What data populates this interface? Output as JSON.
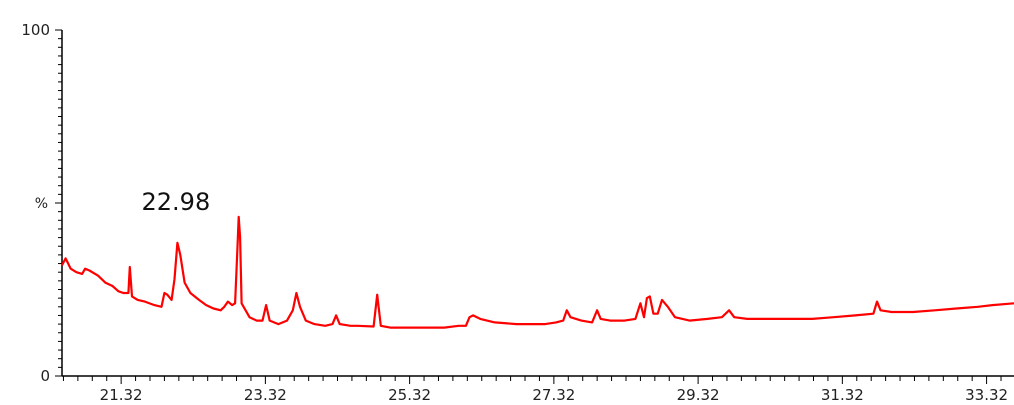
{
  "chart_data": {
    "type": "line",
    "title": "",
    "xlabel": "",
    "ylabel": "%",
    "y_ticks": [
      {
        "value": 0,
        "label": "0"
      },
      {
        "value": 100,
        "label": "100"
      }
    ],
    "ylim": [
      0,
      100
    ],
    "xlim": [
      20.5,
      33.7
    ],
    "x_ticks": [
      "21.32",
      "23.32",
      "25.32",
      "27.32",
      "29.32",
      "31.32",
      "33.32"
    ],
    "grid": false,
    "legend": "none",
    "line_color": "#ff0000",
    "annotations": [
      {
        "text": "22.98",
        "x": 22.98,
        "y": 48
      }
    ],
    "series": [
      {
        "values": [
          [
            20.5,
            32
          ],
          [
            20.55,
            34
          ],
          [
            20.62,
            31
          ],
          [
            20.7,
            30
          ],
          [
            20.78,
            29.5
          ],
          [
            20.82,
            31
          ],
          [
            20.88,
            30.5
          ],
          [
            21.0,
            29
          ],
          [
            21.1,
            27
          ],
          [
            21.2,
            26
          ],
          [
            21.28,
            24.5
          ],
          [
            21.35,
            24
          ],
          [
            21.42,
            24
          ],
          [
            21.44,
            31.5
          ],
          [
            21.47,
            23
          ],
          [
            21.55,
            22
          ],
          [
            21.65,
            21.5
          ],
          [
            21.78,
            20.5
          ],
          [
            21.88,
            20
          ],
          [
            21.92,
            24
          ],
          [
            21.96,
            23.5
          ],
          [
            22.02,
            22
          ],
          [
            22.06,
            28
          ],
          [
            22.1,
            38.5
          ],
          [
            22.14,
            35
          ],
          [
            22.2,
            27
          ],
          [
            22.28,
            24
          ],
          [
            22.4,
            22
          ],
          [
            22.5,
            20.5
          ],
          [
            22.6,
            19.5
          ],
          [
            22.7,
            19
          ],
          [
            22.75,
            20
          ],
          [
            22.8,
            21.5
          ],
          [
            22.86,
            20.5
          ],
          [
            22.9,
            21
          ],
          [
            22.93,
            36
          ],
          [
            22.95,
            46
          ],
          [
            22.97,
            40
          ],
          [
            22.99,
            21
          ],
          [
            23.1,
            17
          ],
          [
            23.2,
            16
          ],
          [
            23.28,
            16
          ],
          [
            23.33,
            20.5
          ],
          [
            23.38,
            16
          ],
          [
            23.5,
            15
          ],
          [
            23.62,
            16
          ],
          [
            23.7,
            19
          ],
          [
            23.75,
            24
          ],
          [
            23.8,
            20
          ],
          [
            23.88,
            16
          ],
          [
            24.0,
            15
          ],
          [
            24.15,
            14.5
          ],
          [
            24.25,
            15
          ],
          [
            24.3,
            17.5
          ],
          [
            24.35,
            15
          ],
          [
            24.5,
            14.5
          ],
          [
            24.6,
            14.5
          ],
          [
            24.82,
            14.3
          ],
          [
            24.87,
            23.5
          ],
          [
            24.92,
            14.5
          ],
          [
            25.05,
            14
          ],
          [
            25.3,
            14
          ],
          [
            25.6,
            14
          ],
          [
            25.8,
            14
          ],
          [
            26.0,
            14.5
          ],
          [
            26.1,
            14.5
          ],
          [
            26.15,
            17
          ],
          [
            26.2,
            17.5
          ],
          [
            26.3,
            16.5
          ],
          [
            26.5,
            15.5
          ],
          [
            26.8,
            15
          ],
          [
            27.0,
            15
          ],
          [
            27.2,
            15
          ],
          [
            27.35,
            15.5
          ],
          [
            27.45,
            16
          ],
          [
            27.5,
            19
          ],
          [
            27.55,
            17
          ],
          [
            27.7,
            16
          ],
          [
            27.85,
            15.5
          ],
          [
            27.92,
            19
          ],
          [
            27.97,
            16.5
          ],
          [
            28.1,
            16
          ],
          [
            28.3,
            16
          ],
          [
            28.45,
            16.5
          ],
          [
            28.52,
            21
          ],
          [
            28.57,
            17
          ],
          [
            28.61,
            22.5
          ],
          [
            28.65,
            23
          ],
          [
            28.7,
            18
          ],
          [
            28.76,
            18
          ],
          [
            28.82,
            22
          ],
          [
            28.9,
            20
          ],
          [
            29.0,
            17
          ],
          [
            29.2,
            16
          ],
          [
            29.45,
            16.5
          ],
          [
            29.65,
            17
          ],
          [
            29.75,
            19
          ],
          [
            29.82,
            17
          ],
          [
            30.0,
            16.5
          ],
          [
            30.3,
            16.5
          ],
          [
            30.6,
            16.5
          ],
          [
            30.9,
            16.5
          ],
          [
            31.2,
            17
          ],
          [
            31.5,
            17.5
          ],
          [
            31.75,
            18
          ],
          [
            31.8,
            21.5
          ],
          [
            31.85,
            19
          ],
          [
            32.0,
            18.5
          ],
          [
            32.3,
            18.5
          ],
          [
            32.6,
            19
          ],
          [
            32.9,
            19.5
          ],
          [
            33.2,
            20
          ],
          [
            33.4,
            20.5
          ],
          [
            33.7,
            21
          ]
        ]
      }
    ]
  }
}
